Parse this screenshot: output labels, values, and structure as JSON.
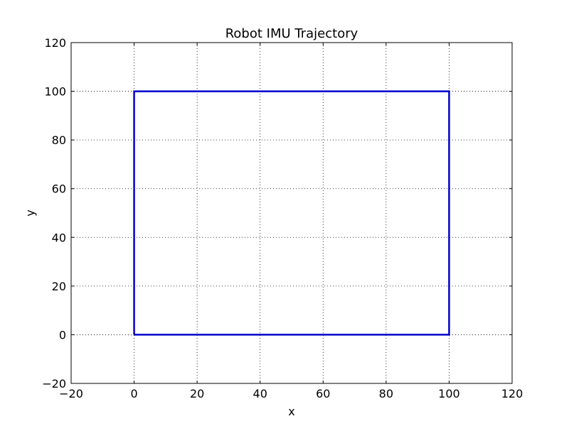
{
  "chart_data": {
    "type": "line",
    "title": "Robot IMU Trajectory",
    "xlabel": "x",
    "ylabel": "y",
    "xlim": [
      -20,
      120
    ],
    "ylim": [
      -20,
      120
    ],
    "xticks": [
      -20,
      0,
      20,
      40,
      60,
      80,
      100,
      120
    ],
    "yticks": [
      -20,
      0,
      20,
      40,
      60,
      80,
      100,
      120
    ],
    "xtick_labels": [
      "−20",
      "0",
      "20",
      "40",
      "60",
      "80",
      "100",
      "120"
    ],
    "ytick_labels": [
      "−20",
      "0",
      "20",
      "40",
      "60",
      "80",
      "100",
      "120"
    ],
    "grid": true,
    "series": [
      {
        "color": "#0000cc",
        "x": [
          0,
          100,
          100,
          0,
          0
        ],
        "y": [
          0,
          0,
          100,
          100,
          0
        ]
      }
    ]
  }
}
